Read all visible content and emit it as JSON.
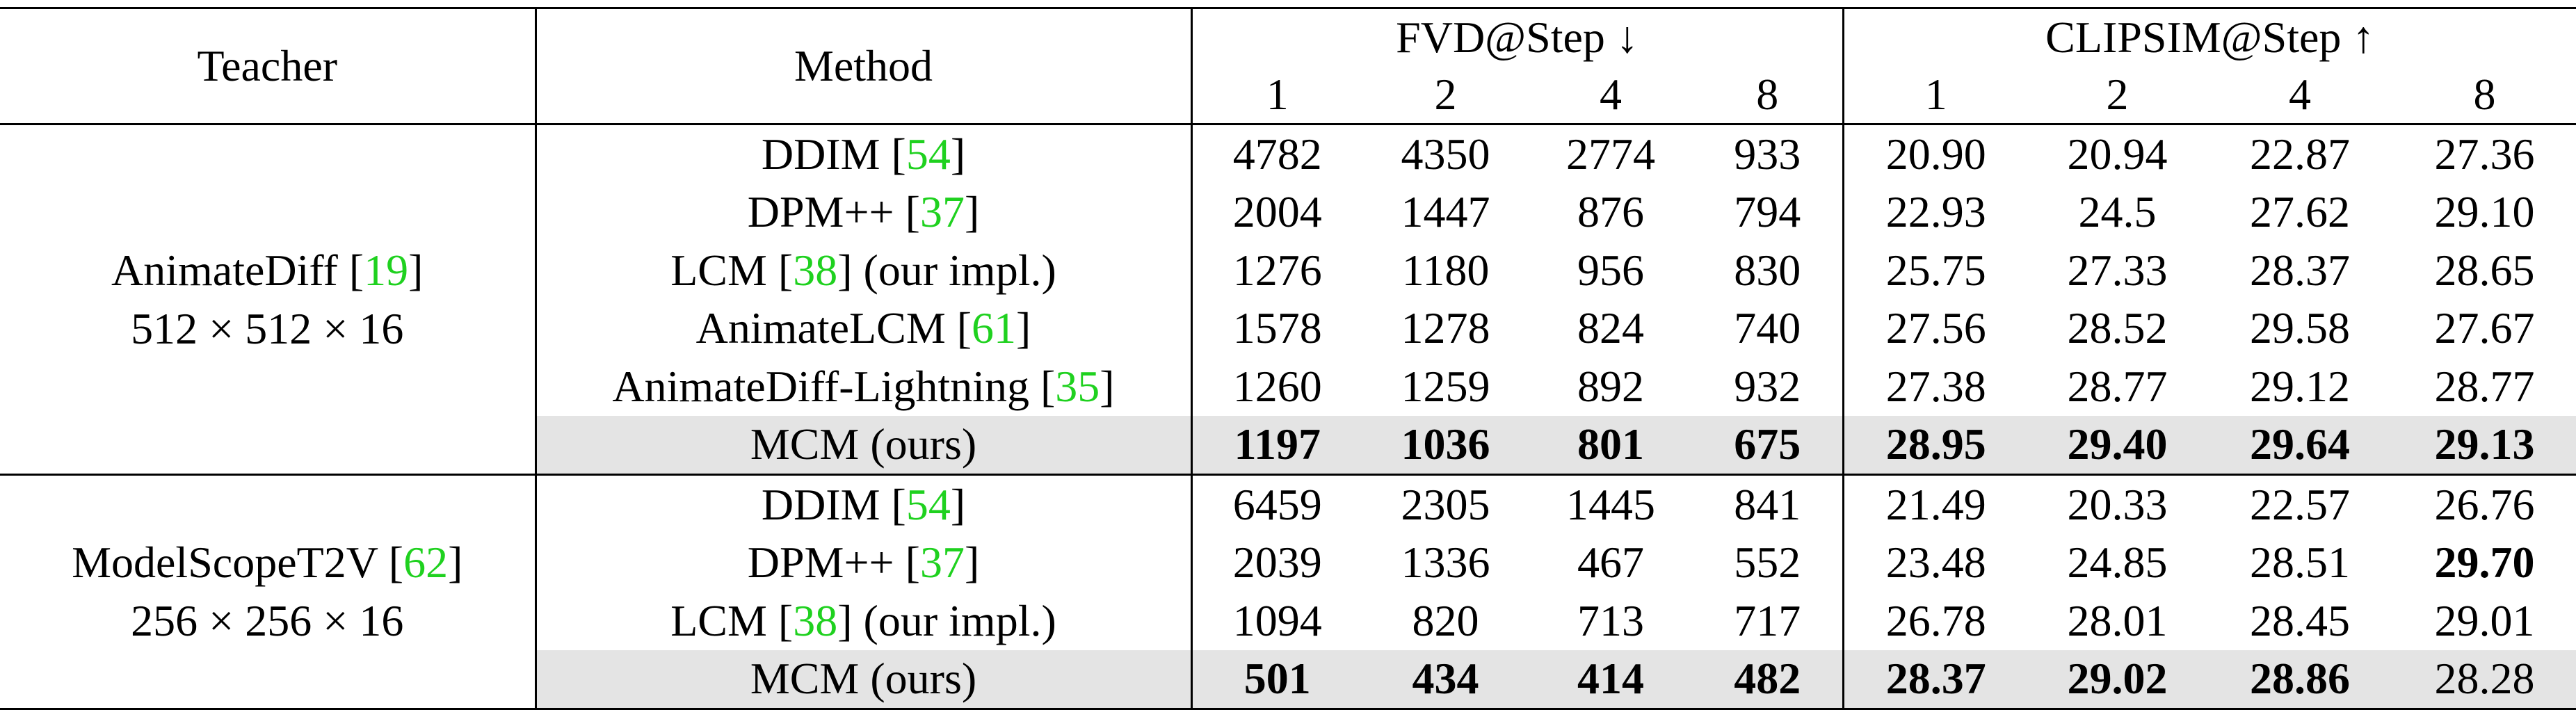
{
  "headers": {
    "teacher": "Teacher",
    "method": "Method",
    "fvd_group": "FVD@Step ↓",
    "clip_group": "CLIPSIM@Step ↑",
    "steps": [
      "1",
      "2",
      "4",
      "8"
    ]
  },
  "groups": [
    {
      "teacher_name": "AnimateDiff",
      "teacher_cite": "19",
      "teacher_res": "512 × 512 × 16",
      "rows": [
        {
          "method": "DDIM",
          "cite": "54",
          "suffix": "",
          "fvd": [
            "4782",
            "4350",
            "2774",
            "933"
          ],
          "clip": [
            "20.90",
            "20.94",
            "22.87",
            "27.36"
          ]
        },
        {
          "method": "DPM++",
          "cite": "37",
          "suffix": "",
          "fvd": [
            "2004",
            "1447",
            "876",
            "794"
          ],
          "clip": [
            "22.93",
            "24.5",
            "27.62",
            "29.10"
          ]
        },
        {
          "method": "LCM",
          "cite": "38",
          "suffix": " (our impl.)",
          "fvd": [
            "1276",
            "1180",
            "956",
            "830"
          ],
          "clip": [
            "25.75",
            "27.33",
            "28.37",
            "28.65"
          ]
        },
        {
          "method": "AnimateLCM",
          "cite": "61",
          "suffix": "",
          "fvd": [
            "1578",
            "1278",
            "824",
            "740"
          ],
          "clip": [
            "27.56",
            "28.52",
            "29.58",
            "27.67"
          ]
        },
        {
          "method": "AnimateDiff-Lightning",
          "cite": "35",
          "suffix": "",
          "fvd": [
            "1260",
            "1259",
            "892",
            "932"
          ],
          "clip": [
            "27.38",
            "28.77",
            "29.12",
            "28.77"
          ]
        },
        {
          "method": "MCM (ours)",
          "cite": "",
          "suffix": "",
          "fvd": [
            "1197",
            "1036",
            "801",
            "675"
          ],
          "clip": [
            "28.95",
            "29.40",
            "29.64",
            "29.13"
          ]
        }
      ]
    },
    {
      "teacher_name": "ModelScopeT2V",
      "teacher_cite": "62",
      "teacher_res": "256 × 256 × 16",
      "rows": [
        {
          "method": "DDIM",
          "cite": "54",
          "suffix": "",
          "fvd": [
            "6459",
            "2305",
            "1445",
            "841"
          ],
          "clip": [
            "21.49",
            "20.33",
            "22.57",
            "26.76"
          ]
        },
        {
          "method": "DPM++",
          "cite": "37",
          "suffix": "",
          "fvd": [
            "2039",
            "1336",
            "467",
            "552"
          ],
          "clip": [
            "23.48",
            "24.85",
            "28.51",
            "29.70"
          ]
        },
        {
          "method": "LCM",
          "cite": "38",
          "suffix": " (our impl.)",
          "fvd": [
            "1094",
            "820",
            "713",
            "717"
          ],
          "clip": [
            "26.78",
            "28.01",
            "28.45",
            "29.01"
          ]
        },
        {
          "method": "MCM (ours)",
          "cite": "",
          "suffix": "",
          "fvd": [
            "501",
            "434",
            "414",
            "482"
          ],
          "clip": [
            "28.37",
            "29.02",
            "28.86",
            "28.28"
          ]
        }
      ]
    }
  ]
}
